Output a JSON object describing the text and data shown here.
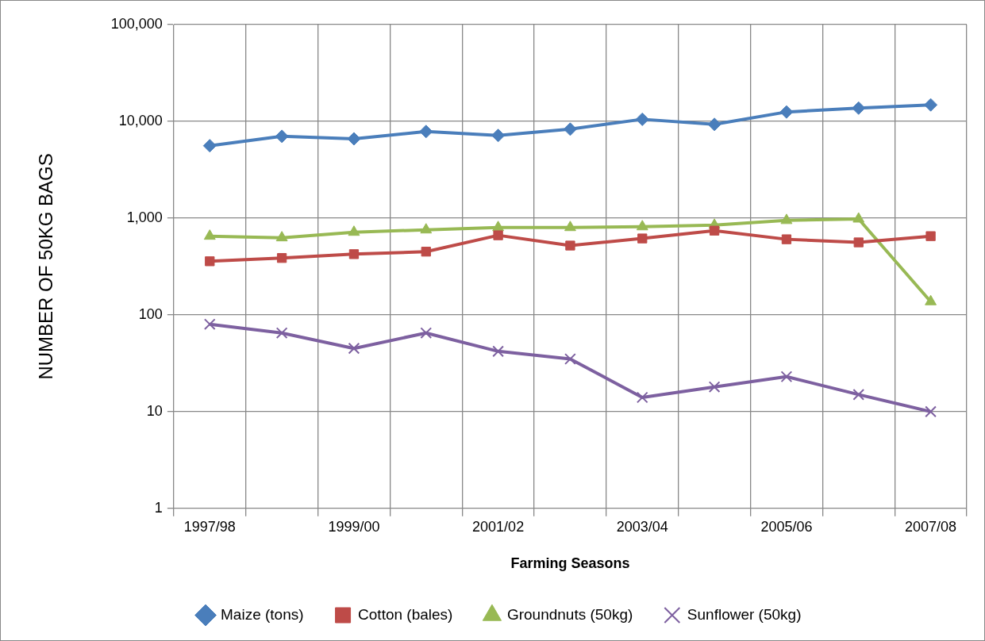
{
  "chart_data": {
    "type": "line",
    "xlabel": "Farming Seasons",
    "ylabel": "NUMBER OF 50KG BAGS",
    "categories": [
      "1997/98",
      null,
      "1999/00",
      null,
      "2001/02",
      null,
      "2003/04",
      null,
      "2005/06",
      null,
      "2007/08"
    ],
    "series": [
      {
        "name": "Maize (tons)",
        "color": "#4a7ebb",
        "marker": "diamond",
        "values": [
          5600,
          7000,
          6600,
          7850,
          7150,
          8300,
          10500,
          9300,
          12500,
          13700,
          14800
        ]
      },
      {
        "name": "Cotton (bales)",
        "color": "#be4b48",
        "marker": "square",
        "values": [
          358,
          387,
          424,
          450,
          664,
          520,
          616,
          742,
          604,
          561,
          651
        ]
      },
      {
        "name": "Groundnuts (50kg)",
        "color": "#98b954",
        "marker": "triangle",
        "values": [
          651,
          627,
          715,
          756,
          800,
          800,
          815,
          845,
          946,
          980,
          137
        ]
      },
      {
        "name": "Sunflower (50kg)",
        "color": "#7d60a0",
        "marker": "cross",
        "values": [
          80,
          65,
          45,
          65,
          42,
          35,
          14,
          18,
          23,
          15,
          10
        ]
      }
    ],
    "log": "y",
    "ylim": [
      1,
      100000
    ],
    "yticks": [
      1,
      10,
      100,
      {
        "value": 1000,
        "label": "1,000"
      },
      {
        "value": 10000,
        "label": "10,000"
      },
      {
        "value": 100000,
        "label": "100,000"
      }
    ],
    "grid": true,
    "legend": "bottom",
    "line_style": "solid"
  }
}
